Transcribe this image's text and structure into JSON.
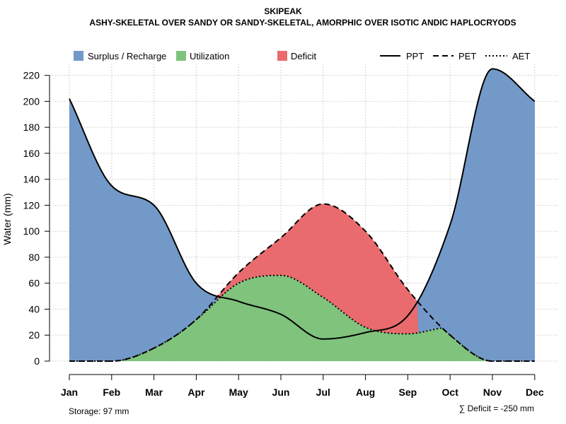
{
  "chart_data": {
    "type": "area",
    "title": "SKIPEAK",
    "subtitle": "ASHY-SKELETAL OVER SANDY OR SANDY-SKELETAL, AMORPHIC OVER ISOTIC ANDIC HAPLOCRYODS",
    "ylabel": "Water (mm)",
    "xlabel": "",
    "ylim": [
      0,
      220
    ],
    "yticks": [
      0,
      20,
      40,
      60,
      80,
      100,
      120,
      140,
      160,
      180,
      200,
      220
    ],
    "grid": true,
    "legend_position": "top",
    "categories": [
      "Jan",
      "Feb",
      "Mar",
      "Apr",
      "May",
      "Jun",
      "Jul",
      "Aug",
      "Sep",
      "Oct",
      "Nov",
      "Dec"
    ],
    "series": [
      {
        "name": "PPT",
        "style": "solid",
        "values": [
          202,
          135,
          120,
          60,
          46,
          36,
          17,
          22,
          35,
          105,
          225,
          200
        ]
      },
      {
        "name": "PET",
        "style": "dashed",
        "values": [
          0,
          0,
          10,
          32,
          68,
          95,
          121,
          100,
          55,
          20,
          0,
          0
        ]
      },
      {
        "name": "AET",
        "style": "dotted",
        "values": [
          0,
          0,
          10,
          32,
          60,
          66,
          49,
          26,
          21,
          26,
          0,
          0
        ]
      }
    ],
    "fills": [
      {
        "name": "Surplus / Recharge",
        "color": "#7399c8"
      },
      {
        "name": "Utilization",
        "color": "#7fc37c"
      },
      {
        "name": "Deficit",
        "color": "#e96b6e"
      }
    ],
    "lines": [
      {
        "name": "PPT",
        "style": "solid"
      },
      {
        "name": "PET",
        "style": "dashed"
      },
      {
        "name": "AET",
        "style": "dotted"
      }
    ],
    "annotations": {
      "storage": "Storage: 97 mm",
      "deficit": "∑ Deficit = -250 mm"
    }
  }
}
